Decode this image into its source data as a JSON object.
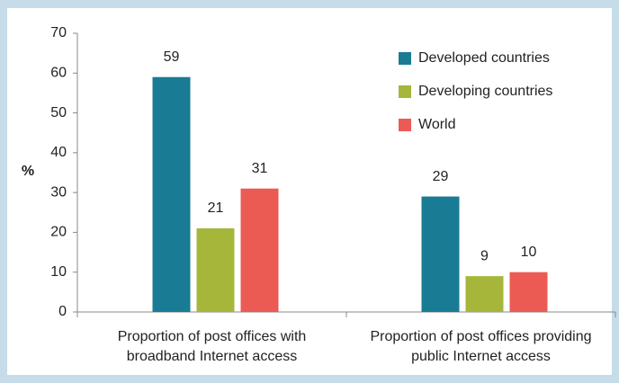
{
  "chart_data": {
    "type": "bar",
    "y_label": "%",
    "categories": [
      "Proportion of post offices with broadband Internet access",
      "Proportion of post offices providing public Internet access"
    ],
    "series": [
      {
        "name": "Developed countries",
        "color": "#1a7b94",
        "values": [
          59,
          29
        ]
      },
      {
        "name": "Developing countries",
        "color": "#a6b63b",
        "values": [
          21,
          9
        ]
      },
      {
        "name": "World",
        "color": "#eb5b54",
        "values": [
          31,
          10
        ]
      }
    ],
    "ylim": [
      0,
      70
    ],
    "yticks": [
      0,
      10,
      20,
      30,
      40,
      50,
      60,
      70
    ],
    "grid": false,
    "legend": "upper right"
  }
}
